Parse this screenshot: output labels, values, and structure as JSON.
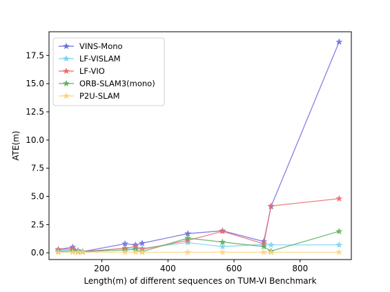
{
  "chart_data": {
    "type": "line",
    "xlabel": "Length(m) of different sequences on TUM-VI Benchmark",
    "ylabel": "ATE(m)",
    "xlim": [
      40,
      955
    ],
    "ylim": [
      -0.6,
      19.6
    ],
    "xticks": [
      200,
      400,
      600,
      800
    ],
    "yticks": [
      0.0,
      2.5,
      5.0,
      7.5,
      10.0,
      12.5,
      15.0,
      17.5
    ],
    "ytick_labels": [
      "0.0",
      "2.5",
      "5.0",
      "7.5",
      "10.0",
      "12.5",
      "15.0",
      "17.5"
    ],
    "legend_position": "upper-left",
    "grid": false,
    "marker": "star",
    "series": [
      {
        "name": "VINS-Mono",
        "color": "#6b6be0",
        "points": [
          [
            68,
            0.3
          ],
          [
            112,
            0.5
          ],
          [
            128,
            0.2
          ],
          [
            142,
            0.1
          ],
          [
            270,
            0.8
          ],
          [
            302,
            0.7
          ],
          [
            322,
            0.85
          ],
          [
            460,
            1.7
          ],
          [
            565,
            1.95
          ],
          [
            690,
            1.0
          ],
          [
            712,
            4.1
          ],
          [
            918,
            18.7
          ]
        ]
      },
      {
        "name": "LF-VISLAM",
        "color": "#74d4f0",
        "points": [
          [
            68,
            0.2
          ],
          [
            112,
            0.25
          ],
          [
            128,
            0.15
          ],
          [
            142,
            0.1
          ],
          [
            270,
            0.4
          ],
          [
            302,
            0.35
          ],
          [
            322,
            0.4
          ],
          [
            460,
            0.9
          ],
          [
            565,
            0.55
          ],
          [
            690,
            0.75
          ],
          [
            712,
            0.7
          ],
          [
            918,
            0.7
          ]
        ]
      },
      {
        "name": "LF-VIO",
        "color": "#ec6b6b",
        "points": [
          [
            68,
            0.3
          ],
          [
            112,
            0.35
          ],
          [
            128,
            0.1
          ],
          [
            142,
            0.1
          ],
          [
            270,
            0.4
          ],
          [
            302,
            0.55
          ],
          [
            322,
            0.3
          ],
          [
            460,
            1.1
          ],
          [
            565,
            1.9
          ],
          [
            690,
            0.8
          ],
          [
            712,
            4.15
          ],
          [
            918,
            4.8
          ]
        ]
      },
      {
        "name": "ORB-SLAM3(mono)",
        "color": "#5fae5f",
        "points": [
          [
            68,
            0.1
          ],
          [
            112,
            0.15
          ],
          [
            128,
            0.1
          ],
          [
            142,
            0.1
          ],
          [
            270,
            0.25
          ],
          [
            302,
            0.3
          ],
          [
            322,
            0.1
          ],
          [
            460,
            1.3
          ],
          [
            565,
            0.95
          ],
          [
            690,
            0.55
          ],
          [
            712,
            0.15
          ],
          [
            918,
            1.9
          ]
        ]
      },
      {
        "name": "P2U-SLAM",
        "color": "#ffd27a",
        "points": [
          [
            68,
            0.05
          ],
          [
            112,
            0.05
          ],
          [
            128,
            0.05
          ],
          [
            142,
            0.05
          ],
          [
            270,
            0.05
          ],
          [
            302,
            0.05
          ],
          [
            322,
            0.05
          ],
          [
            460,
            0.05
          ],
          [
            565,
            0.05
          ],
          [
            690,
            0.05
          ],
          [
            712,
            0.05
          ],
          [
            918,
            0.05
          ]
        ]
      }
    ]
  }
}
